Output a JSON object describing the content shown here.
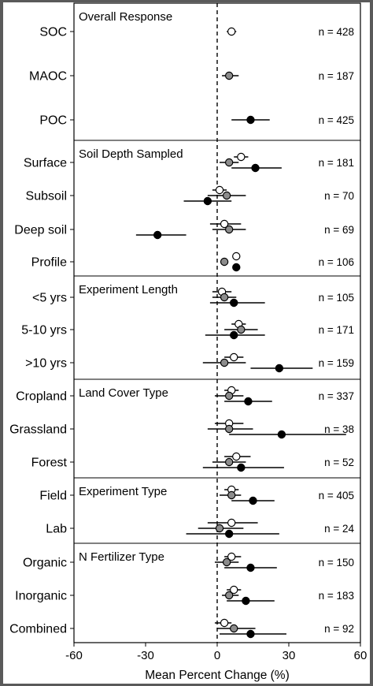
{
  "chart_data": {
    "type": "forest-plot",
    "xlabel": "Mean Percent Change (%)",
    "xlim": [
      -60,
      60
    ],
    "xticks": [
      -60,
      -30,
      0,
      30,
      60
    ],
    "reference_line": 0,
    "series_styles": [
      {
        "key": "soc",
        "fill": "#ffffff"
      },
      {
        "key": "maoc",
        "fill": "#8c8c8c"
      },
      {
        "key": "poc",
        "fill": "#000000"
      }
    ],
    "panels": [
      {
        "title": "Overall Response",
        "rows": [
          {
            "label": "SOC",
            "n": "n = 428",
            "points": [
              {
                "series": "soc",
                "mean": 6,
                "lo": 4,
                "hi": 8
              }
            ]
          },
          {
            "label": "MAOC",
            "n": "n = 187",
            "points": [
              {
                "series": "maoc",
                "mean": 5,
                "lo": 2,
                "hi": 9
              }
            ]
          },
          {
            "label": "POC",
            "n": "n = 425",
            "points": [
              {
                "series": "poc",
                "mean": 14,
                "lo": 6,
                "hi": 22
              }
            ]
          }
        ]
      },
      {
        "title": "Soil Depth Sampled",
        "rows": [
          {
            "label": "Surface",
            "n": "n = 181",
            "points": [
              {
                "series": "soc",
                "mean": 10,
                "lo": 7,
                "hi": 13
              },
              {
                "series": "maoc",
                "mean": 5,
                "lo": 1,
                "hi": 9
              },
              {
                "series": "poc",
                "mean": 16,
                "lo": 6,
                "hi": 27
              }
            ]
          },
          {
            "label": "Subsoil",
            "n": "n = 70",
            "points": [
              {
                "series": "soc",
                "mean": 1,
                "lo": -2,
                "hi": 4
              },
              {
                "series": "maoc",
                "mean": 4,
                "lo": -4,
                "hi": 12
              },
              {
                "series": "poc",
                "mean": -4,
                "lo": -14,
                "hi": 6
              }
            ]
          },
          {
            "label": "Deep soil",
            "n": "n = 69",
            "points": [
              {
                "series": "soc",
                "mean": 3,
                "lo": -3,
                "hi": 10
              },
              {
                "series": "maoc",
                "mean": 5,
                "lo": -2,
                "hi": 12
              },
              {
                "series": "poc",
                "mean": -25,
                "lo": -34,
                "hi": -13
              }
            ]
          },
          {
            "label": "Profile",
            "n": "n = 106",
            "points": [
              {
                "series": "soc",
                "mean": 8,
                "lo": 8,
                "hi": 8
              },
              {
                "series": "maoc",
                "mean": 3,
                "lo": 2,
                "hi": 4
              },
              {
                "series": "poc",
                "mean": 8,
                "lo": 7,
                "hi": 9
              }
            ]
          }
        ]
      },
      {
        "title": "Experiment Length",
        "rows": [
          {
            "label": "<5 yrs",
            "n": "n = 105",
            "points": [
              {
                "series": "soc",
                "mean": 2,
                "lo": -2,
                "hi": 6
              },
              {
                "series": "maoc",
                "mean": 3,
                "lo": -2,
                "hi": 8
              },
              {
                "series": "poc",
                "mean": 7,
                "lo": -3,
                "hi": 20
              }
            ]
          },
          {
            "label": "5-10 yrs",
            "n": "n = 171",
            "points": [
              {
                "series": "soc",
                "mean": 9,
                "lo": 6,
                "hi": 12
              },
              {
                "series": "maoc",
                "mean": 10,
                "lo": 3,
                "hi": 17
              },
              {
                "series": "poc",
                "mean": 7,
                "lo": -5,
                "hi": 20
              }
            ]
          },
          {
            "label": ">10 yrs",
            "n": "n = 159",
            "points": [
              {
                "series": "soc",
                "mean": 7,
                "lo": 3,
                "hi": 11
              },
              {
                "series": "maoc",
                "mean": 3,
                "lo": -6,
                "hi": 12
              },
              {
                "series": "poc",
                "mean": 26,
                "lo": 14,
                "hi": 40
              }
            ]
          }
        ]
      },
      {
        "title": "Land Cover Type",
        "rows": [
          {
            "label": "Cropland",
            "n": "n = 337",
            "points": [
              {
                "series": "soc",
                "mean": 6,
                "lo": 3,
                "hi": 9
              },
              {
                "series": "maoc",
                "mean": 5,
                "lo": -1,
                "hi": 11
              },
              {
                "series": "poc",
                "mean": 13,
                "lo": 3,
                "hi": 23
              }
            ]
          },
          {
            "label": "Grassland",
            "n": "n = 38",
            "points": [
              {
                "series": "soc",
                "mean": 5,
                "lo": -1,
                "hi": 11
              },
              {
                "series": "maoc",
                "mean": 5,
                "lo": -4,
                "hi": 15
              },
              {
                "series": "poc",
                "mean": 27,
                "lo": 5,
                "hi": 54
              }
            ]
          },
          {
            "label": "Forest",
            "n": "n = 52",
            "points": [
              {
                "series": "soc",
                "mean": 8,
                "lo": 3,
                "hi": 14
              },
              {
                "series": "maoc",
                "mean": 5,
                "lo": -2,
                "hi": 12
              },
              {
                "series": "poc",
                "mean": 10,
                "lo": -6,
                "hi": 28
              }
            ]
          }
        ]
      },
      {
        "title": "Experiment Type",
        "rows": [
          {
            "label": "Field",
            "n": "n = 405",
            "points": [
              {
                "series": "soc",
                "mean": 6,
                "lo": 3,
                "hi": 9
              },
              {
                "series": "maoc",
                "mean": 6,
                "lo": 1,
                "hi": 10
              },
              {
                "series": "poc",
                "mean": 15,
                "lo": 6,
                "hi": 24
              }
            ]
          },
          {
            "label": "Lab",
            "n": "n = 24",
            "points": [
              {
                "series": "soc",
                "mean": 6,
                "lo": -4,
                "hi": 17
              },
              {
                "series": "maoc",
                "mean": 1,
                "lo": -8,
                "hi": 11
              },
              {
                "series": "poc",
                "mean": 5,
                "lo": -13,
                "hi": 26
              }
            ]
          }
        ]
      },
      {
        "title": "N Fertilizer Type",
        "rows": [
          {
            "label": "Organic",
            "n": "n = 150",
            "points": [
              {
                "series": "soc",
                "mean": 6,
                "lo": 3,
                "hi": 10
              },
              {
                "series": "maoc",
                "mean": 4,
                "lo": -1,
                "hi": 9
              },
              {
                "series": "poc",
                "mean": 14,
                "lo": 3,
                "hi": 25
              }
            ]
          },
          {
            "label": "Inorganic",
            "n": "n = 183",
            "points": [
              {
                "series": "soc",
                "mean": 7,
                "lo": 4,
                "hi": 10
              },
              {
                "series": "maoc",
                "mean": 5,
                "lo": 2,
                "hi": 9
              },
              {
                "series": "poc",
                "mean": 12,
                "lo": 4,
                "hi": 24
              }
            ]
          },
          {
            "label": "Combined",
            "n": "n = 92",
            "points": [
              {
                "series": "soc",
                "mean": 3,
                "lo": -1,
                "hi": 6
              },
              {
                "series": "maoc",
                "mean": 7,
                "lo": 0,
                "hi": 16
              },
              {
                "series": "poc",
                "mean": 14,
                "lo": 1,
                "hi": 29
              }
            ]
          }
        ]
      }
    ]
  }
}
